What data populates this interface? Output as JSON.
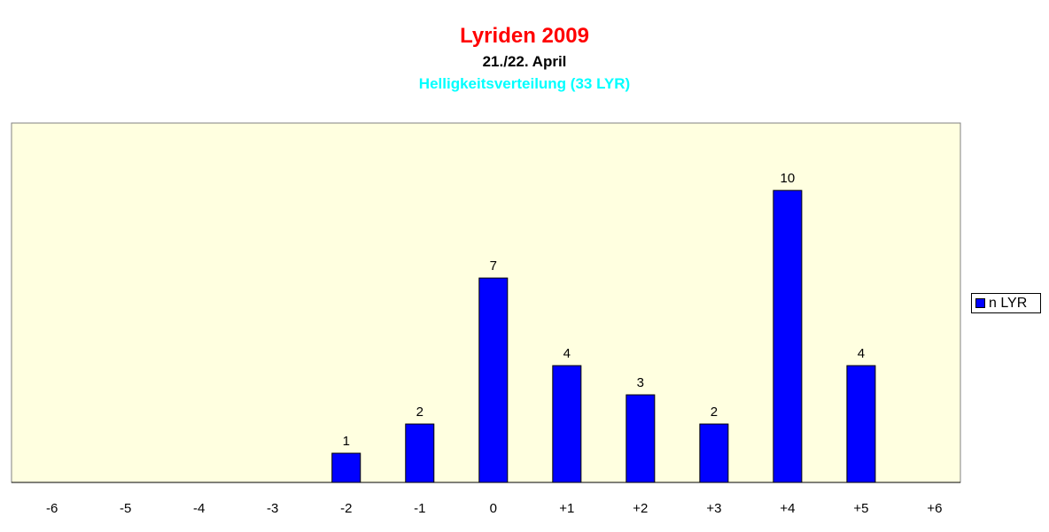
{
  "chart_data": {
    "type": "bar",
    "title": "Lyriden 2009",
    "subtitle": "21./22. April",
    "subtitle2": "Helligkeitsverteilung (33 LYR)",
    "categories": [
      "-6",
      "-5",
      "-4",
      "-3",
      "-2",
      "-1",
      "0",
      "+1",
      "+2",
      "+3",
      "+4",
      "+5",
      "+6"
    ],
    "series": [
      {
        "name": "n LYR",
        "values": [
          0,
          0,
          0,
          0,
          1,
          2,
          7,
          4,
          3,
          2,
          10,
          4,
          0
        ],
        "data_labels": [
          null,
          null,
          null,
          null,
          1,
          2,
          7,
          4,
          3,
          2,
          10,
          4,
          null
        ]
      }
    ],
    "xlabel": "",
    "ylabel": "",
    "ylim": [
      0,
      12
    ],
    "grid": false,
    "legend_position": "right",
    "colors": {
      "title": "#ff0000",
      "subtitle": "#000000",
      "subtitle2": "#00ffff",
      "plot_background": "#ffffe0",
      "bar_fill": "#0000ff",
      "bar_stroke": "#000000"
    }
  }
}
